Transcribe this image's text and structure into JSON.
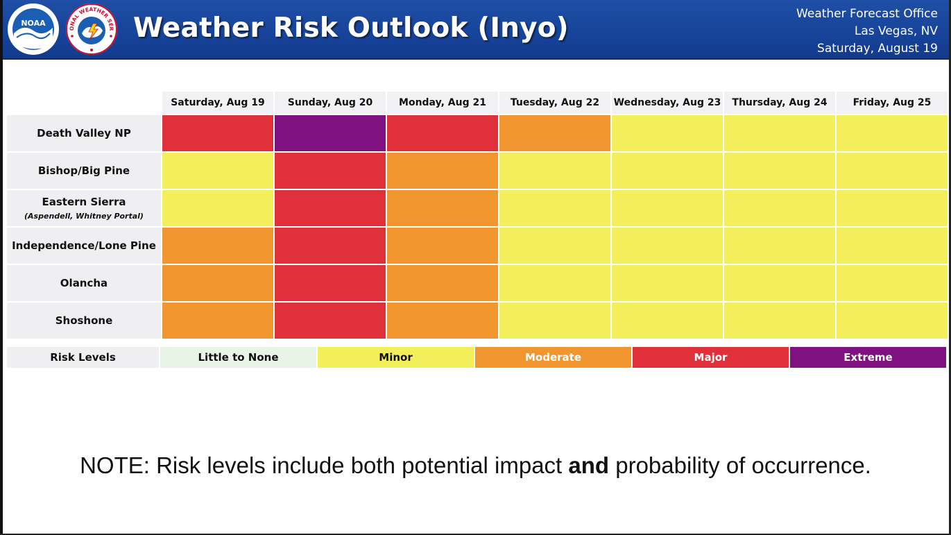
{
  "header": {
    "title": "Weather Risk Outlook (Inyo)",
    "office_name": "Weather Forecast Office",
    "office_location": "Las Vegas, NV",
    "issue_date": "Saturday, August 19",
    "noaa_logo_text": "NOAA",
    "nws_logo_text": "NATIONAL WEATHER SERVICE"
  },
  "colors": {
    "little_to_none": "#e8f4e6",
    "minor": "#f3ef5a",
    "moderate": "#f1962f",
    "major": "#e0303a",
    "extreme": "#7f1180",
    "header_blue": "#1a479d"
  },
  "days": [
    "Saturday, Aug 19",
    "Sunday, Aug 20",
    "Monday, Aug 21",
    "Tuesday, Aug 22",
    "Wednesday, Aug 23",
    "Thursday, Aug 24",
    "Friday, Aug 25"
  ],
  "locations": [
    {
      "name": "Death Valley NP",
      "sub": "",
      "risks": [
        "major",
        "extreme",
        "major",
        "moderate",
        "minor",
        "minor",
        "minor"
      ]
    },
    {
      "name": "Bishop/Big Pine",
      "sub": "",
      "risks": [
        "minor",
        "major",
        "moderate",
        "minor",
        "minor",
        "minor",
        "minor"
      ]
    },
    {
      "name": "Eastern Sierra",
      "sub": "(Aspendell, Whitney Portal)",
      "risks": [
        "minor",
        "major",
        "moderate",
        "minor",
        "minor",
        "minor",
        "minor"
      ]
    },
    {
      "name": "Independence/Lone Pine",
      "sub": "",
      "risks": [
        "moderate",
        "major",
        "moderate",
        "minor",
        "minor",
        "minor",
        "minor"
      ]
    },
    {
      "name": "Olancha",
      "sub": "",
      "risks": [
        "moderate",
        "major",
        "moderate",
        "minor",
        "minor",
        "minor",
        "minor"
      ]
    },
    {
      "name": "Shoshone",
      "sub": "",
      "risks": [
        "moderate",
        "major",
        "moderate",
        "minor",
        "minor",
        "minor",
        "minor"
      ]
    }
  ],
  "legend": {
    "label": "Risk Levels",
    "items": [
      {
        "key": "little_to_none",
        "label": "Little to None",
        "text_color": "#111111"
      },
      {
        "key": "minor",
        "label": "Minor",
        "text_color": "#111111"
      },
      {
        "key": "moderate",
        "label": "Moderate",
        "text_color": "#ffffff"
      },
      {
        "key": "major",
        "label": "Major",
        "text_color": "#ffffff"
      },
      {
        "key": "extreme",
        "label": "Extreme",
        "text_color": "#ffffff"
      }
    ]
  },
  "note": {
    "prefix": "NOTE: Risk levels include both potential impact ",
    "bold": "and",
    "suffix": " probability of occurrence."
  }
}
